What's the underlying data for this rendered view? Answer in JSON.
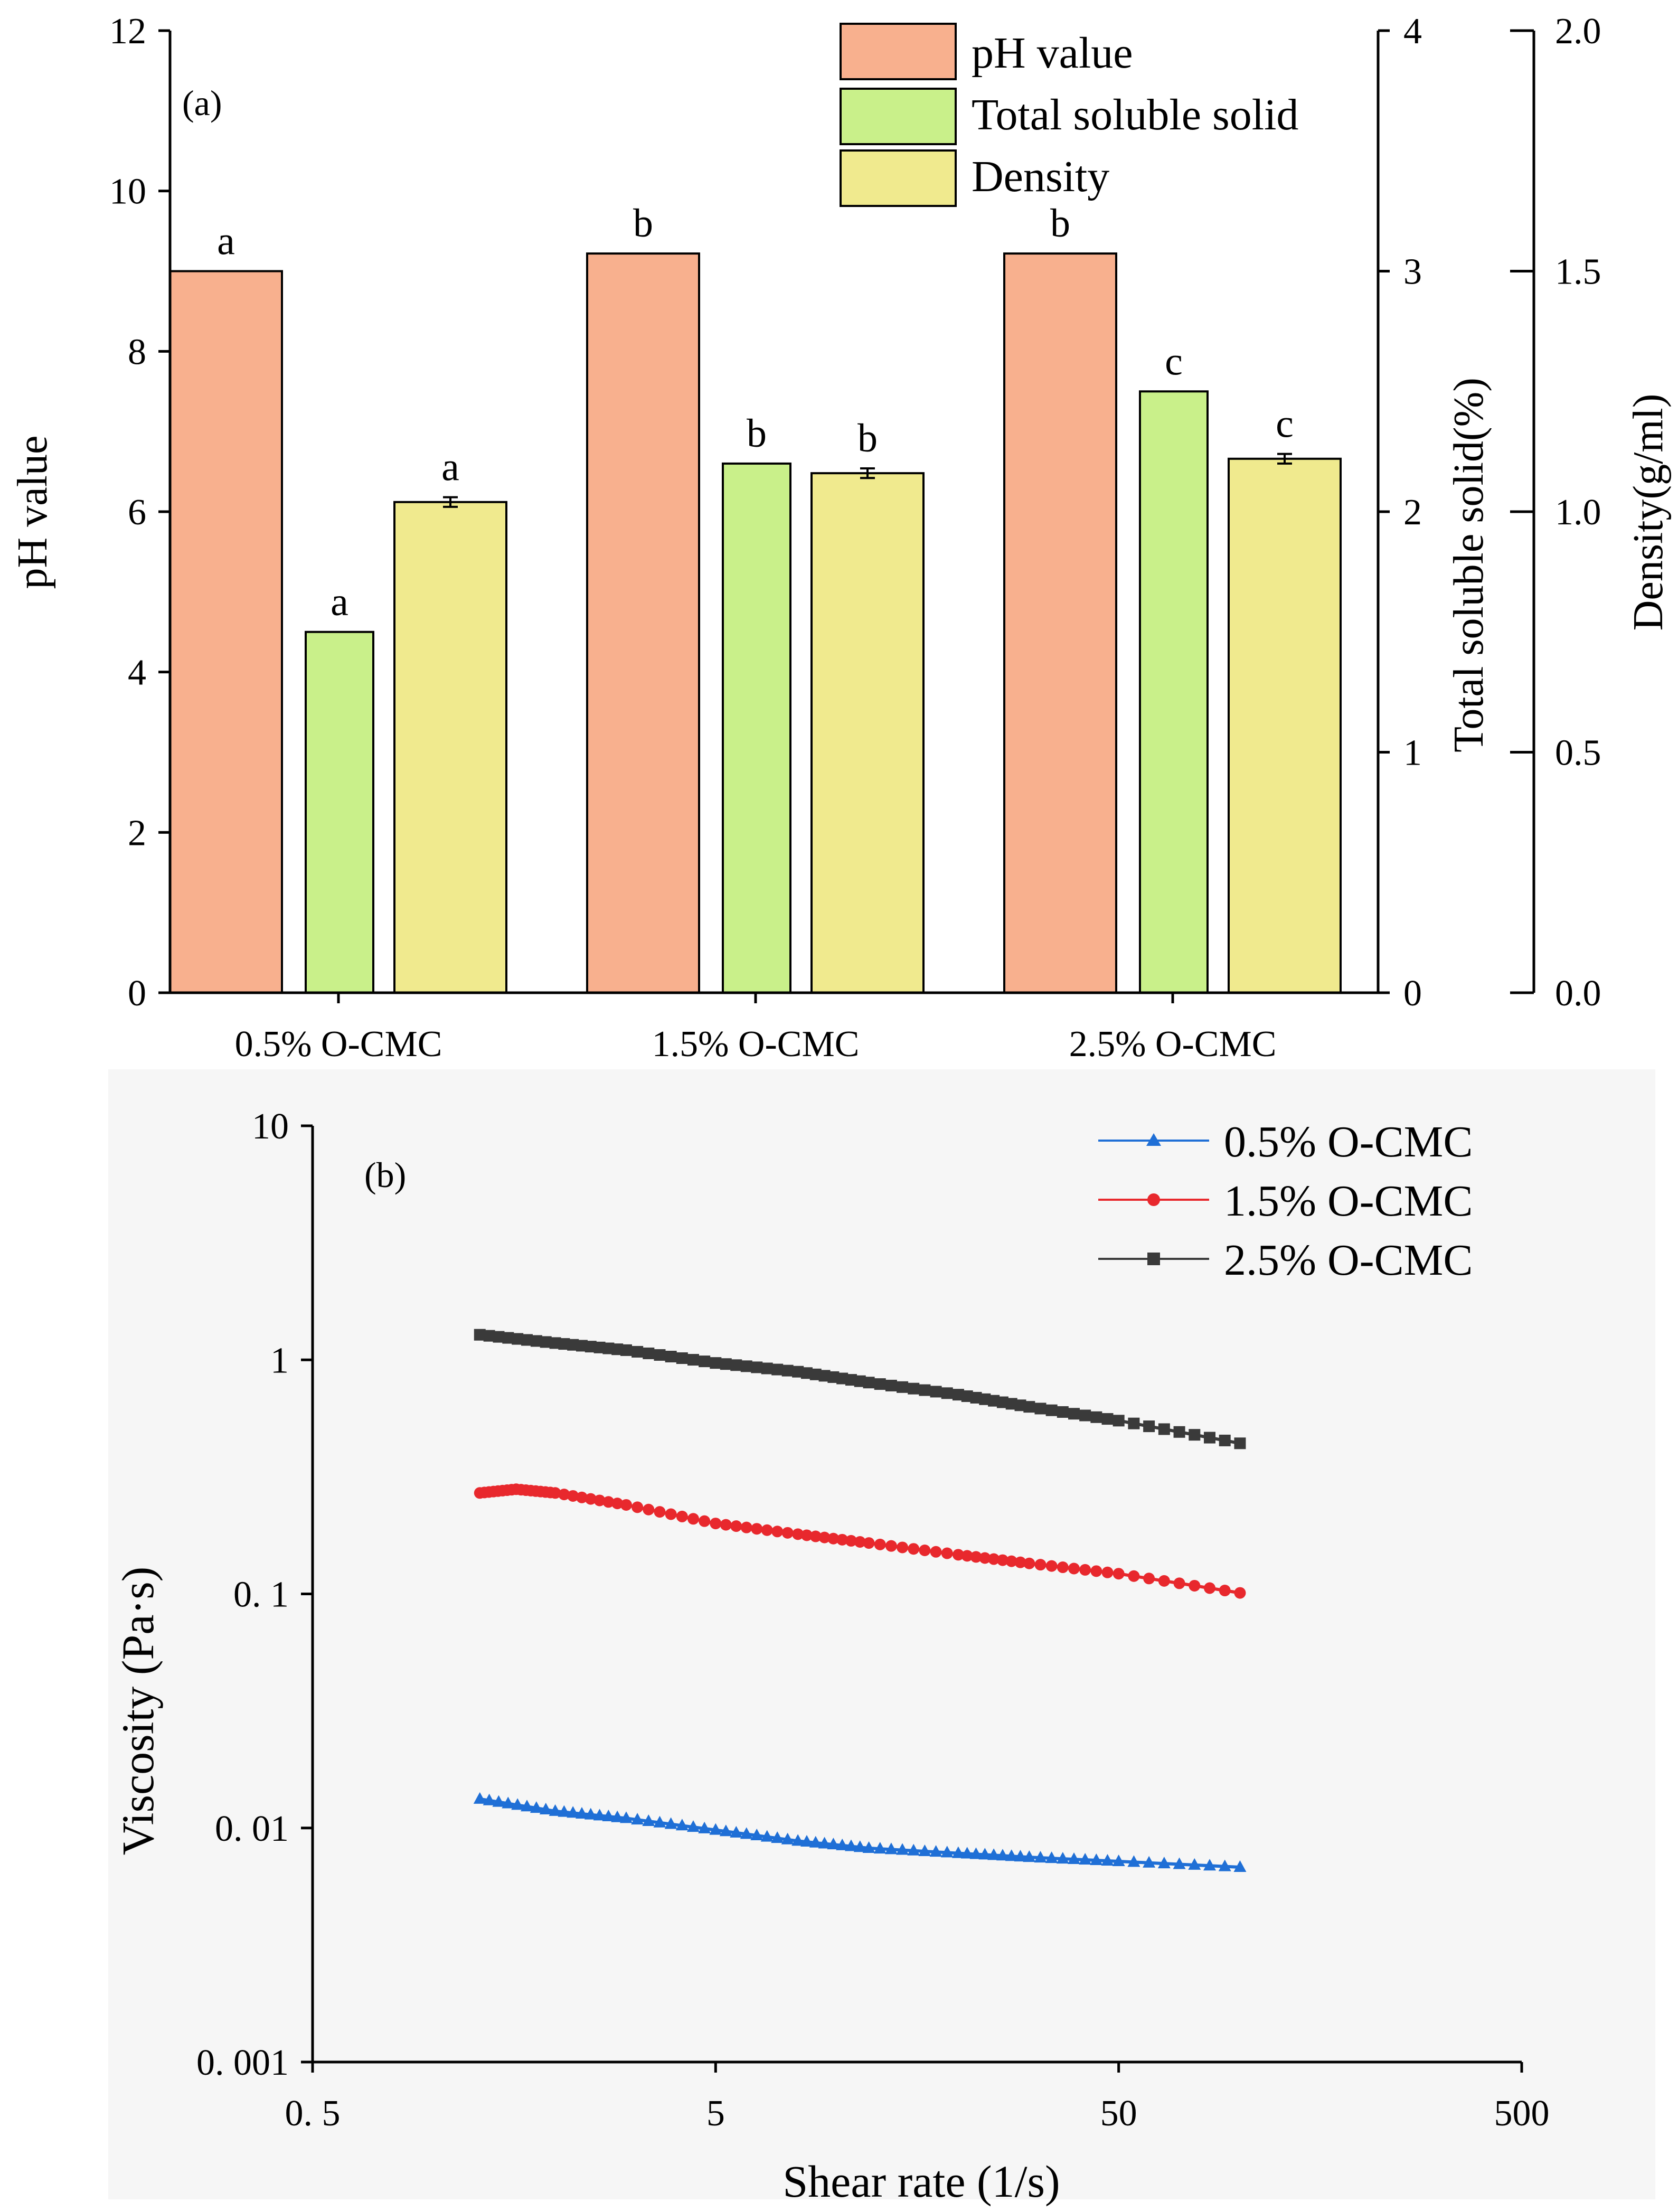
{
  "chart_data": [
    {
      "type": "bar",
      "panel_label": "(a)",
      "categories": [
        "0.5% O-CMC",
        "1.5% O-CMC",
        "2.5% O-CMC"
      ],
      "series": [
        {
          "name": "pH value",
          "axis": "pH value",
          "values": [
            9.0,
            9.22,
            9.22
          ],
          "error": [
            0,
            0,
            0
          ],
          "letters": [
            "a",
            "b",
            "b"
          ],
          "color": "#f8b08e"
        },
        {
          "name": "Total soluble solid",
          "axis": "Total soluble solid(%)",
          "values": [
            1.5,
            2.2,
            2.5
          ],
          "error": [
            0,
            0,
            0
          ],
          "letters": [
            "a",
            "b",
            "c"
          ],
          "color": "#c9f08a"
        },
        {
          "name": "Density",
          "axis": "Density(g/ml)",
          "values": [
            1.02,
            1.08,
            1.11
          ],
          "error": [
            0.01,
            0.01,
            0.01
          ],
          "letters": [
            "a",
            "b",
            "c"
          ],
          "color": "#f0ea8e"
        }
      ],
      "axes": [
        {
          "label": "pH value",
          "side": "left",
          "ylim": [
            0,
            12
          ],
          "ticks": [
            "0",
            "2",
            "4",
            "6",
            "8",
            "10",
            "12"
          ]
        },
        {
          "label": "Total soluble solid(%)",
          "side": "right",
          "ylim": [
            0,
            4
          ],
          "ticks": [
            "0",
            "1",
            "2",
            "3",
            "4"
          ]
        },
        {
          "label": "Density(g/ml)",
          "side": "right-outer",
          "ylim": [
            0,
            2.0
          ],
          "ticks": [
            "0.0",
            "0.5",
            "1.0",
            "1.5",
            "2.0"
          ]
        }
      ],
      "legend": {
        "placement": "top-right",
        "entries": [
          "pH value",
          "Total soluble solid",
          "Density"
        ]
      }
    },
    {
      "type": "line",
      "panel_label": "(b)",
      "xlabel": "Shear rate (1/s)",
      "ylabel": "Viscosity (Pa·s)",
      "xscale": "log",
      "yscale": "log",
      "xlim": [
        0.5,
        500
      ],
      "ylim": [
        0.001,
        10
      ],
      "xticks": [
        "0. 5",
        "5",
        "50",
        "500"
      ],
      "yticks": [
        "0. 001",
        "0. 01",
        "0. 1",
        "1",
        "10"
      ],
      "legend": {
        "placement": "top-right",
        "entries": [
          "0.5% O-CMC",
          "1.5% O-CMC",
          "2.5% O-CMC"
        ]
      },
      "series": [
        {
          "name": "0.5% O-CMC",
          "color": "#1f6fd6",
          "marker": "triangle",
          "x": [
            1.3,
            2.0,
            3.0,
            5.0,
            8.0,
            12.0,
            20.0,
            30.0,
            50.0,
            100.0
          ],
          "y": [
            0.0133,
            0.0118,
            0.011,
            0.0098,
            0.0088,
            0.0082,
            0.0078,
            0.0075,
            0.0072,
            0.0068
          ]
        },
        {
          "name": "1.5% O-CMC",
          "color": "#e8282d",
          "marker": "circle",
          "x": [
            1.3,
            1.6,
            2.0,
            3.0,
            5.0,
            8.0,
            12.0,
            20.0,
            30.0,
            50.0,
            100.0
          ],
          "y": [
            0.27,
            0.28,
            0.27,
            0.24,
            0.2,
            0.18,
            0.165,
            0.147,
            0.135,
            0.122,
            0.101
          ]
        },
        {
          "name": "2.5% O-CMC",
          "color": "#3a3a3a",
          "marker": "square",
          "x": [
            1.3,
            2.0,
            3.0,
            5.0,
            8.0,
            12.0,
            20.0,
            30.0,
            50.0,
            100.0
          ],
          "y": [
            1.28,
            1.18,
            1.1,
            0.97,
            0.89,
            0.8,
            0.71,
            0.63,
            0.55,
            0.44
          ]
        }
      ]
    }
  ]
}
